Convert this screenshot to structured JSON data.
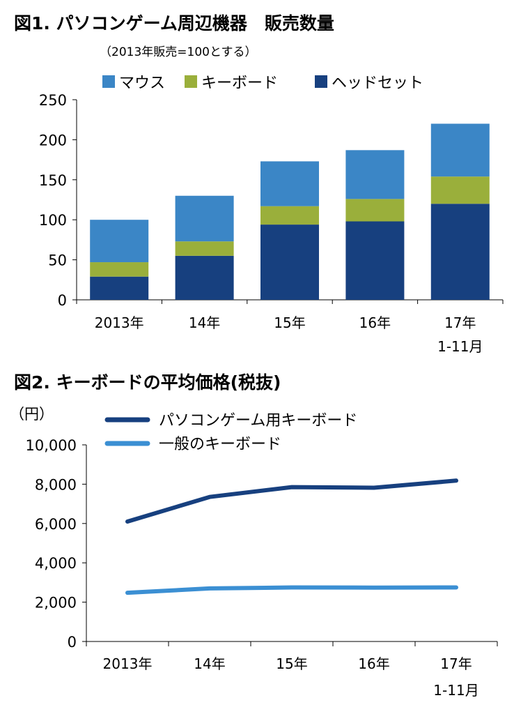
{
  "chart_data": [
    {
      "type": "bar",
      "stacked": true,
      "title": "図1. パソコンゲーム周辺機器　販売数量",
      "subtitle": "（2013年販売=100とする）",
      "categories": [
        "2013年",
        "14年",
        "15年",
        "16年",
        "17年 1-11月"
      ],
      "category_lines": [
        [
          "2013年"
        ],
        [
          "14年"
        ],
        [
          "15年"
        ],
        [
          "16年"
        ],
        [
          "17年",
          "1-11月"
        ]
      ],
      "series": [
        {
          "name": "ヘッドセット",
          "color": "#17407f",
          "values": [
            29,
            55,
            94,
            98,
            120
          ]
        },
        {
          "name": "キーボード",
          "color": "#9aaf3b",
          "values": [
            18,
            18,
            23,
            28,
            34
          ]
        },
        {
          "name": "マウス",
          "color": "#3b86c6",
          "values": [
            53,
            57,
            56,
            61,
            66
          ]
        }
      ],
      "legend_order": [
        "マウス",
        "キーボード",
        "ヘッドセット"
      ],
      "legend_position": "top",
      "ylim": [
        0,
        250
      ],
      "yticks": [
        "0",
        "50",
        "100",
        "150",
        "200",
        "250"
      ],
      "grid": false
    },
    {
      "type": "line",
      "title": "図2. キーボードの平均価格(税抜)",
      "y_unit_label": "（円）",
      "categories": [
        "2013年",
        "14年",
        "15年",
        "16年",
        "17年 1-11月"
      ],
      "category_lines": [
        [
          "2013年"
        ],
        [
          "14年"
        ],
        [
          "15年"
        ],
        [
          "16年"
        ],
        [
          "17年",
          "1-11月"
        ]
      ],
      "series": [
        {
          "name": "パソコンゲーム用キーボード",
          "color": "#17407f",
          "values": [
            6100,
            7350,
            7850,
            7820,
            8180
          ]
        },
        {
          "name": "一般のキーボード",
          "color": "#3b8fd3",
          "values": [
            2480,
            2700,
            2750,
            2740,
            2750
          ]
        }
      ],
      "legend_position": "top",
      "ylim": [
        0,
        10000
      ],
      "yticks": [
        "0",
        "2,000",
        "4,000",
        "6,000",
        "8,000",
        "10,000"
      ],
      "grid": false
    }
  ]
}
